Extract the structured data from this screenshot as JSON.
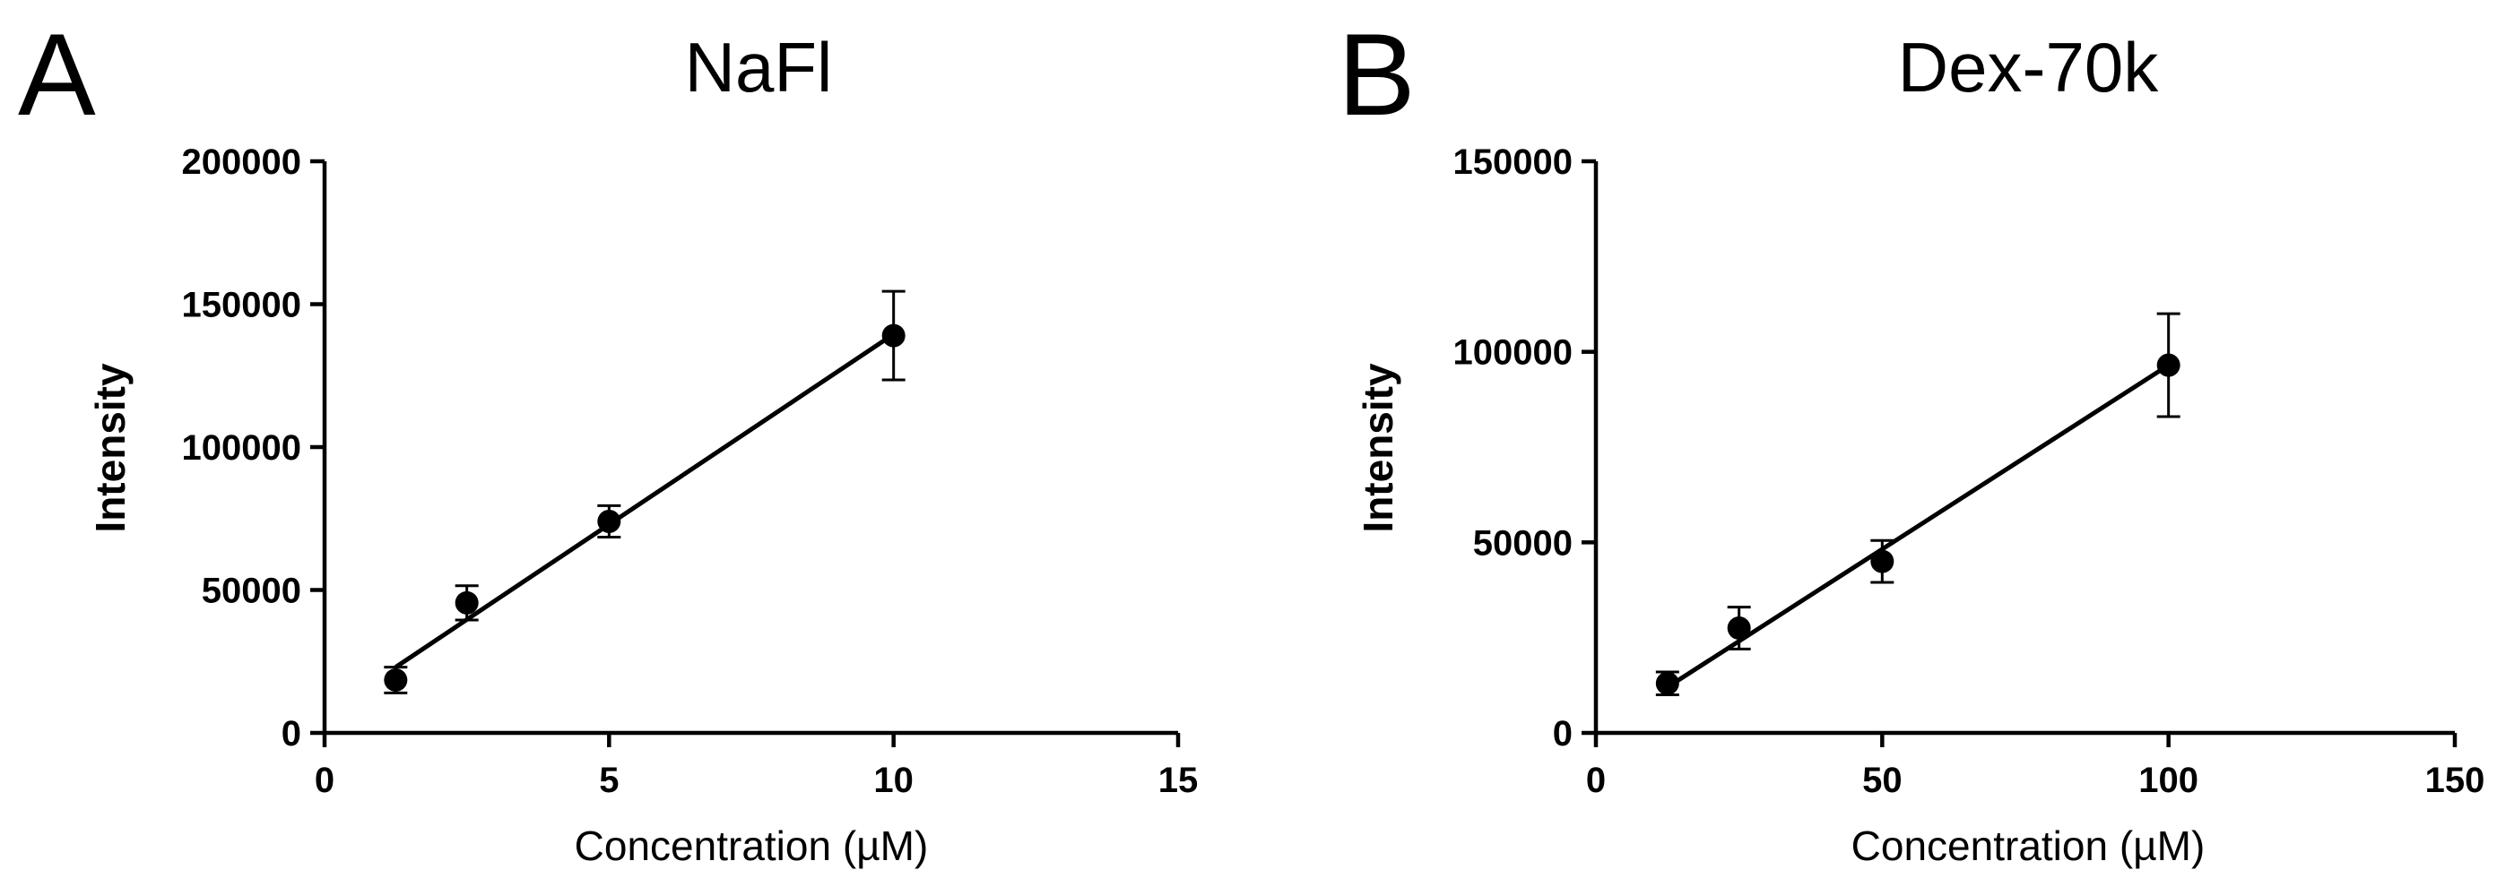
{
  "chart_data": [
    {
      "panel_label": "A",
      "type": "scatter",
      "title": "NaFl",
      "xlabel": "Concentration (µM)",
      "ylabel": "Intensity",
      "xlim": [
        0,
        15
      ],
      "ylim": [
        0,
        200000
      ],
      "xticks": [
        "0",
        "5",
        "10",
        "15"
      ],
      "yticks": [
        "0",
        "50000",
        "100000",
        "150000",
        "200000"
      ],
      "grid": false,
      "series": [
        {
          "x": [
            1.25,
            2.5,
            5,
            10
          ],
          "y": [
            18500,
            45500,
            74000,
            139000
          ],
          "error": [
            4500,
            6000,
            5500,
            15500
          ]
        }
      ],
      "fit_line": {
        "x": [
          1.25,
          10
        ],
        "y": [
          23000,
          139500
        ]
      },
      "colors": {
        "marker": "#000000",
        "line": "#000000"
      }
    },
    {
      "panel_label": "B",
      "type": "scatter",
      "title": "Dex-70k",
      "xlabel": "Concentration (µM)",
      "ylabel": "Intensity",
      "xlim": [
        0,
        150
      ],
      "ylim": [
        0,
        150000
      ],
      "xticks": [
        "0",
        "50",
        "100",
        "150"
      ],
      "yticks": [
        "0",
        "50000",
        "100000",
        "150000"
      ],
      "grid": false,
      "series": [
        {
          "x": [
            12.5,
            25,
            50,
            100
          ],
          "y": [
            13000,
            27500,
            45000,
            96500
          ],
          "error": [
            3000,
            5500,
            5500,
            13500
          ]
        }
      ],
      "fit_line": {
        "x": [
          12.5,
          100
        ],
        "y": [
          12000,
          96500
        ]
      },
      "colors": {
        "marker": "#000000",
        "line": "#000000"
      }
    }
  ]
}
